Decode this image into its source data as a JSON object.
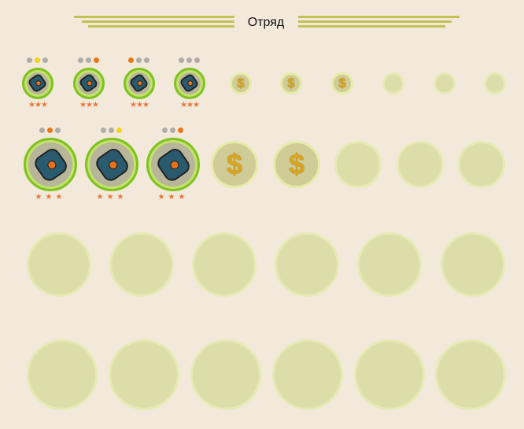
{
  "header": {
    "title": "Отряд"
  },
  "colors": {
    "ring": "#7ec31f",
    "empty": "#ddddaa",
    "dollar": "#d9a521",
    "dot_gray": "#b0aca6",
    "dot_yellow": "#f2d21a",
    "dot_orange": "#e8771a",
    "star": "#e8773c"
  },
  "rows": [
    {
      "slots": [
        {
          "type": "unit",
          "icon": "turret-unit-icon",
          "dots": [
            "gray",
            "yellow",
            "gray"
          ],
          "stars": 3
        },
        {
          "type": "unit",
          "icon": "turret-unit-icon",
          "dots": [
            "gray",
            "gray",
            "orange"
          ],
          "stars": 3
        },
        {
          "type": "unit",
          "icon": "turret-unit-icon",
          "dots": [
            "orange",
            "gray",
            "gray"
          ],
          "stars": 3
        },
        {
          "type": "unit",
          "icon": "turret-unit-icon",
          "dots": [
            "gray",
            "gray",
            "gray"
          ],
          "stars": 3
        },
        {
          "type": "dollar",
          "icon": "dollar-icon",
          "label": "$"
        },
        {
          "type": "dollar",
          "icon": "dollar-icon",
          "label": "$"
        },
        {
          "type": "dollar",
          "icon": "dollar-icon",
          "label": "$"
        },
        {
          "type": "empty"
        },
        {
          "type": "empty"
        },
        {
          "type": "empty"
        }
      ]
    },
    {
      "slots": [
        {
          "type": "unit",
          "icon": "tank-unit-icon",
          "dots": [
            "gray",
            "orange",
            "gray"
          ],
          "stars": 3
        },
        {
          "type": "unit",
          "icon": "tank-unit-icon",
          "dots": [
            "gray",
            "gray",
            "yellow"
          ],
          "stars": 3
        },
        {
          "type": "unit",
          "icon": "tank-unit-icon",
          "dots": [
            "gray",
            "gray",
            "orange"
          ],
          "stars": 3
        },
        {
          "type": "dollar",
          "icon": "dollar-icon",
          "label": "$"
        },
        {
          "type": "dollar",
          "icon": "dollar-icon",
          "label": "$"
        },
        {
          "type": "empty"
        },
        {
          "type": "empty"
        },
        {
          "type": "empty"
        }
      ]
    },
    {
      "slots": [
        {
          "type": "empty"
        },
        {
          "type": "empty"
        },
        {
          "type": "empty"
        },
        {
          "type": "empty"
        },
        {
          "type": "empty"
        },
        {
          "type": "empty"
        }
      ]
    },
    {
      "slots": [
        {
          "type": "empty"
        },
        {
          "type": "empty"
        },
        {
          "type": "empty"
        },
        {
          "type": "empty"
        },
        {
          "type": "empty"
        },
        {
          "type": "empty"
        }
      ]
    }
  ]
}
